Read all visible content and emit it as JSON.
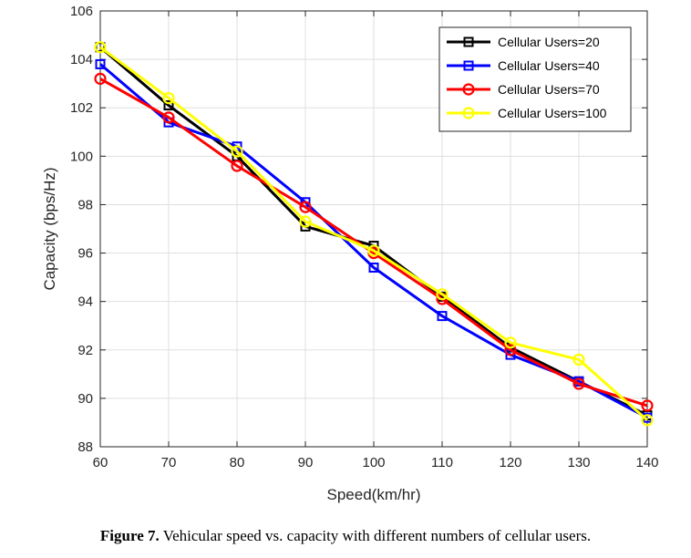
{
  "chart_data": {
    "type": "line",
    "xlabel": "Speed(km/hr)",
    "ylabel": "Capacity (bps/Hz)",
    "xlim": [
      60,
      140
    ],
    "ylim": [
      88,
      106
    ],
    "xticks": [
      60,
      70,
      80,
      90,
      100,
      110,
      120,
      130,
      140
    ],
    "yticks": [
      88,
      90,
      92,
      94,
      96,
      98,
      100,
      102,
      104,
      106
    ],
    "grid": true,
    "legend_position": "top-right",
    "x": [
      60,
      70,
      80,
      90,
      100,
      110,
      120,
      130,
      140
    ],
    "series": [
      {
        "name": "Cellular Users=20",
        "color": "#000000",
        "marker": "square",
        "values": [
          104.5,
          102.1,
          100.0,
          97.1,
          96.3,
          94.2,
          92.1,
          90.7,
          89.3
        ]
      },
      {
        "name": "Cellular Users=40",
        "color": "#0000ff",
        "marker": "square",
        "values": [
          103.8,
          101.4,
          100.4,
          98.1,
          95.4,
          93.4,
          91.8,
          90.7,
          89.2
        ]
      },
      {
        "name": "Cellular Users=70",
        "color": "#ff0000",
        "marker": "circle",
        "values": [
          103.2,
          101.6,
          99.6,
          97.9,
          96.0,
          94.1,
          92.0,
          90.6,
          89.7
        ]
      },
      {
        "name": "Cellular Users=100",
        "color": "#ffff00",
        "marker": "circle",
        "values": [
          104.5,
          102.4,
          100.2,
          97.3,
          96.1,
          94.3,
          92.3,
          91.6,
          89.1
        ]
      }
    ]
  },
  "caption": {
    "label": "Figure 7.",
    "text": " Vehicular speed vs. capacity with different numbers of cellular users."
  }
}
